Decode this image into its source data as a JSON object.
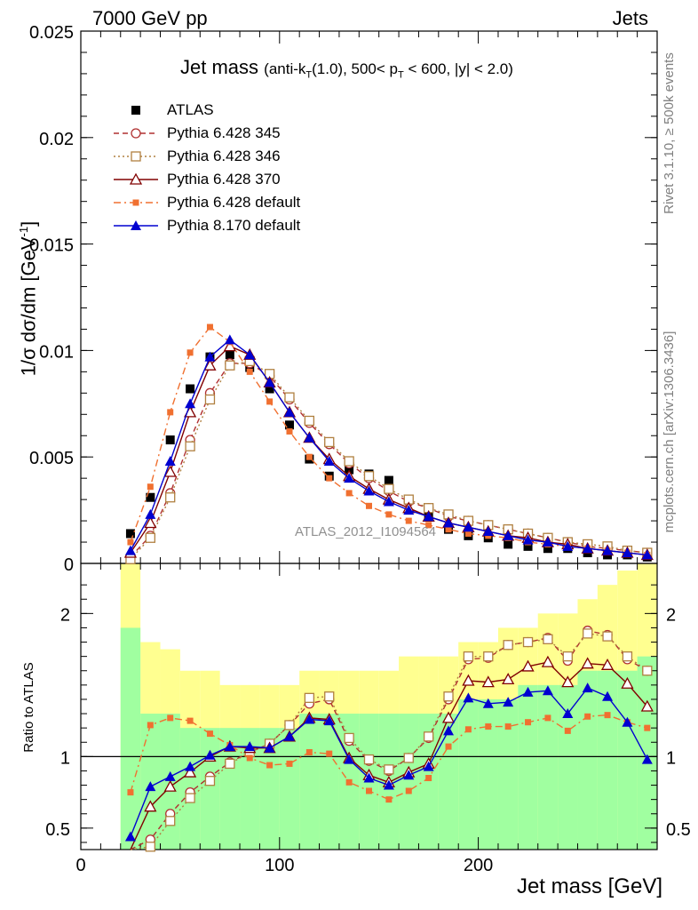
{
  "header": {
    "energy": "7000 GeV pp",
    "category": "Jets"
  },
  "plot_title": {
    "main": "Jet mass",
    "sub": "(anti-k_T(1.0), 500< p_T < 600, |y| < 2.0)"
  },
  "side_labels": {
    "rivet": "Rivet 3.1.10, ≥ 500k events",
    "mcplots": "mcplots.cern.ch [arXiv:1306.3436]"
  },
  "analysis_label": "ATLAS_2012_I1094564",
  "chart_data": [
    {
      "type": "scatter",
      "panel": "main",
      "xlabel": "Jet mass [GeV]",
      "ylabel": "1/σ dσ/dm [GeV⁻¹]",
      "xlim": [
        0,
        290
      ],
      "ylim": [
        0,
        0.025
      ],
      "yticks": [
        "0",
        "0.005",
        "0.01",
        "0.015",
        "0.02",
        "0.025"
      ],
      "xticks": [
        "0",
        "100",
        "200"
      ],
      "legend_position": "top-left",
      "x": [
        25,
        35,
        45,
        55,
        65,
        75,
        85,
        95,
        105,
        115,
        125,
        135,
        145,
        155,
        165,
        175,
        185,
        195,
        205,
        215,
        225,
        235,
        245,
        255,
        265,
        275,
        285
      ],
      "series": [
        {
          "name": "ATLAS",
          "color": "#000000",
          "marker": "square-filled",
          "style": "points",
          "values": [
            0.0014,
            0.0031,
            0.0058,
            0.0082,
            0.0097,
            0.0098,
            0.0092,
            0.0082,
            0.0065,
            0.0049,
            0.0041,
            0.0044,
            0.0042,
            0.0039,
            0.003,
            0.0022,
            0.0016,
            0.0013,
            0.0012,
            0.0009,
            0.0008,
            0.0007,
            0.0007,
            0.0005,
            0.0004,
            0.0004,
            0.0003
          ]
        },
        {
          "name": "Pythia 6.428 345",
          "color": "#b03030",
          "marker": "circle-open",
          "style": "dashed",
          "values": [
            0.0003,
            0.0013,
            0.0033,
            0.0058,
            0.008,
            0.0094,
            0.0094,
            0.0088,
            0.0077,
            0.0066,
            0.0056,
            0.0047,
            0.004,
            0.0034,
            0.0029,
            0.0026,
            0.0022,
            0.002,
            0.0018,
            0.0016,
            0.0014,
            0.0012,
            0.001,
            0.0008,
            0.0007,
            0.0006,
            0.0005
          ]
        },
        {
          "name": "Pythia 6.428 346",
          "color": "#b08040",
          "marker": "square-open",
          "style": "dotted",
          "values": [
            0.0002,
            0.0012,
            0.0031,
            0.0055,
            0.0077,
            0.0093,
            0.0095,
            0.0089,
            0.0078,
            0.0067,
            0.0057,
            0.0048,
            0.0041,
            0.0035,
            0.003,
            0.0026,
            0.0023,
            0.002,
            0.0018,
            0.0016,
            0.0014,
            0.0012,
            0.001,
            0.0009,
            0.0008,
            0.0006,
            0.0005
          ]
        },
        {
          "name": "Pythia 6.428 370",
          "color": "#800000",
          "marker": "triangle-open",
          "style": "solid",
          "values": [
            0.0005,
            0.0019,
            0.0043,
            0.0071,
            0.0093,
            0.0102,
            0.0098,
            0.0085,
            0.0071,
            0.0059,
            0.0049,
            0.0041,
            0.0035,
            0.003,
            0.0026,
            0.0022,
            0.0019,
            0.0017,
            0.0015,
            0.0013,
            0.0012,
            0.001,
            0.0009,
            0.0007,
            0.0006,
            0.0005,
            0.0004
          ]
        },
        {
          "name": "Pythia 6.428 default",
          "color": "#f07030",
          "marker": "square-filled-small",
          "style": "dashdot",
          "values": [
            0.001,
            0.0036,
            0.0071,
            0.0099,
            0.0111,
            0.0104,
            0.009,
            0.0076,
            0.0062,
            0.005,
            0.004,
            0.0033,
            0.0027,
            0.0023,
            0.002,
            0.0018,
            0.0016,
            0.0014,
            0.0013,
            0.0012,
            0.001,
            0.0009,
            0.0008,
            0.0007,
            0.0006,
            0.0005,
            0.0004
          ]
        },
        {
          "name": "Pythia 8.170 default",
          "color": "#0000d0",
          "marker": "triangle-filled",
          "style": "solid",
          "values": [
            0.0006,
            0.0023,
            0.0048,
            0.0075,
            0.0097,
            0.0105,
            0.0098,
            0.0085,
            0.0071,
            0.0059,
            0.0048,
            0.004,
            0.0034,
            0.0029,
            0.0025,
            0.0022,
            0.0019,
            0.0017,
            0.0015,
            0.0013,
            0.0011,
            0.001,
            0.0008,
            0.0007,
            0.0006,
            0.0005,
            0.0004
          ]
        }
      ]
    },
    {
      "type": "line",
      "panel": "ratio",
      "ylabel": "Ratio to ATLAS",
      "xlim": [
        0,
        290
      ],
      "ylim": [
        0.35,
        2.35
      ],
      "yticks": [
        "0.5",
        "1",
        "2"
      ],
      "reference_line": 1,
      "bins": [
        20,
        30,
        40,
        50,
        60,
        70,
        80,
        90,
        100,
        110,
        120,
        130,
        140,
        150,
        160,
        170,
        180,
        190,
        200,
        210,
        220,
        230,
        240,
        250,
        260,
        270,
        280,
        290
      ],
      "band_inner": {
        "color": "#a0ffa0",
        "lo": [
          0.35,
          0.35,
          0.35,
          0.35,
          0.35,
          0.35,
          0.35,
          0.35,
          0.35,
          0.35,
          0.35,
          0.35,
          0.35,
          0.35,
          0.35,
          0.35,
          0.35,
          0.35,
          0.35,
          0.35,
          0.35,
          0.35,
          0.35,
          0.35,
          0.35,
          0.35,
          0.35
        ],
        "hi": [
          1.9,
          1.3,
          1.3,
          1.2,
          1.2,
          1.2,
          1.2,
          1.2,
          1.2,
          1.3,
          1.3,
          1.3,
          1.3,
          1.3,
          1.3,
          1.3,
          1.3,
          1.4,
          1.4,
          1.4,
          1.5,
          1.5,
          1.5,
          1.6,
          1.6,
          1.6,
          1.7
        ]
      },
      "band_outer": {
        "color": "#ffff90",
        "lo": [
          0.35,
          0.35,
          0.35,
          0.35,
          0.35,
          0.35,
          0.35,
          0.35,
          0.35,
          0.35,
          0.35,
          0.35,
          0.35,
          0.35,
          0.35,
          0.35,
          0.35,
          0.35,
          0.35,
          0.35,
          0.35,
          0.35,
          0.35,
          0.35,
          0.35,
          0.35,
          0.35
        ],
        "hi": [
          2.35,
          1.8,
          1.75,
          1.6,
          1.6,
          1.5,
          1.5,
          1.5,
          1.5,
          1.6,
          1.6,
          1.6,
          1.6,
          1.6,
          1.7,
          1.7,
          1.7,
          1.8,
          1.8,
          1.9,
          1.9,
          2.0,
          2.0,
          2.1,
          2.2,
          2.3,
          2.35
        ]
      },
      "x": [
        25,
        35,
        45,
        55,
        65,
        75,
        85,
        95,
        105,
        115,
        125,
        135,
        145,
        155,
        165,
        175,
        185,
        195,
        205,
        215,
        225,
        235,
        245,
        255,
        265,
        275,
        285
      ],
      "series": [
        {
          "name": "Pythia 6.428 345",
          "color": "#b03030",
          "marker": "circle-open",
          "style": "dashed",
          "values": [
            0.25,
            0.42,
            0.6,
            0.75,
            0.86,
            0.96,
            1.03,
            1.09,
            1.22,
            1.37,
            1.4,
            1.11,
            0.97,
            0.9,
            0.99,
            1.13,
            1.4,
            1.68,
            1.69,
            1.78,
            1.8,
            1.83,
            1.67,
            1.88,
            1.85,
            1.68,
            1.6
          ]
        },
        {
          "name": "Pythia 6.428 346",
          "color": "#b08040",
          "marker": "square-open",
          "style": "dotted",
          "values": [
            0.2,
            0.37,
            0.55,
            0.71,
            0.83,
            0.95,
            1.03,
            1.09,
            1.22,
            1.41,
            1.42,
            1.13,
            0.98,
            0.91,
            0.99,
            1.14,
            1.42,
            1.7,
            1.7,
            1.78,
            1.8,
            1.82,
            1.7,
            1.86,
            1.84,
            1.7,
            1.6
          ]
        },
        {
          "name": "Pythia 6.428 370",
          "color": "#800000",
          "marker": "triangle-open",
          "style": "solid",
          "values": [
            0.3,
            0.65,
            0.79,
            0.89,
            1.0,
            1.07,
            1.06,
            1.06,
            1.14,
            1.27,
            1.26,
            0.99,
            0.87,
            0.82,
            0.89,
            0.95,
            1.27,
            1.53,
            1.52,
            1.54,
            1.63,
            1.66,
            1.52,
            1.65,
            1.64,
            1.51,
            1.35
          ]
        },
        {
          "name": "Pythia 6.428 default",
          "color": "#f07030",
          "marker": "square-filled-small",
          "style": "dashdot",
          "values": [
            0.75,
            1.22,
            1.27,
            1.25,
            1.16,
            1.08,
            0.99,
            0.94,
            0.95,
            1.03,
            1.02,
            0.82,
            0.76,
            0.7,
            0.76,
            0.85,
            1.07,
            1.19,
            1.21,
            1.21,
            1.24,
            1.27,
            1.18,
            1.28,
            1.29,
            1.24,
            1.2
          ]
        },
        {
          "name": "Pythia 8.170 default",
          "color": "#0000d0",
          "marker": "triangle-filled",
          "style": "solid",
          "values": [
            0.44,
            0.79,
            0.86,
            0.93,
            1.01,
            1.07,
            1.07,
            1.06,
            1.14,
            1.26,
            1.25,
            0.98,
            0.85,
            0.8,
            0.87,
            0.93,
            1.18,
            1.41,
            1.37,
            1.38,
            1.45,
            1.46,
            1.3,
            1.48,
            1.42,
            1.24,
            0.98
          ]
        }
      ]
    }
  ]
}
